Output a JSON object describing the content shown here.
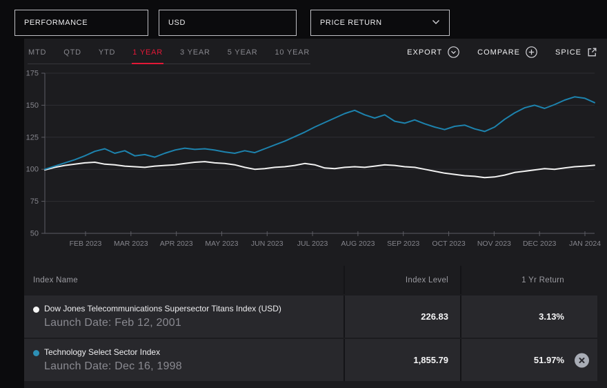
{
  "filters": [
    {
      "label": "PERFORMANCE"
    },
    {
      "label": "USD"
    },
    {
      "label": "PRICE RETURN"
    }
  ],
  "tabs": {
    "items": [
      "MTD",
      "QTD",
      "YTD",
      "1 YEAR",
      "3 YEAR",
      "5 YEAR",
      "10 YEAR"
    ],
    "active": "1 YEAR"
  },
  "actions": {
    "export_label": "EXPORT",
    "compare_label": "COMPARE",
    "spice_label": "SPICE"
  },
  "chart_data": {
    "type": "line",
    "title": "",
    "xlabel": "",
    "ylabel": "",
    "ylim": [
      50,
      175
    ],
    "grid": true,
    "legend_position": "none",
    "y_ticks": [
      175,
      150,
      125,
      100,
      75,
      50
    ],
    "x_ticks": [
      "FEB 2023",
      "MAR 2023",
      "APR 2023",
      "MAY 2023",
      "JUN 2023",
      "JUL 2023",
      "AUG 2023",
      "SEP 2023",
      "OCT 2023",
      "NOV 2023",
      "DEC 2023",
      "JAN 2024"
    ],
    "series": [
      {
        "name": "Dow Jones Telecommunications Supersector Titans Index (USD)",
        "color": "#f2f2f2",
        "values": [
          99.5,
          101.5,
          103,
          104,
          105,
          105.5,
          104,
          103.5,
          102.5,
          102,
          101.5,
          102.5,
          103,
          103.5,
          104.5,
          105.5,
          106,
          105,
          104.5,
          103.5,
          101.5,
          100,
          100.5,
          101.5,
          102,
          103,
          104.5,
          103.5,
          101,
          100.5,
          101.5,
          102,
          101.5,
          102.5,
          103.5,
          103,
          102,
          101.5,
          100,
          98.5,
          97,
          96,
          95,
          94.5,
          93.5,
          94,
          95.5,
          97.5,
          98.5,
          99.5,
          100.5,
          100,
          101,
          102,
          102.5,
          103.1
        ]
      },
      {
        "name": "Technology Select Sector Index",
        "color": "#1d83ae",
        "values": [
          100,
          102.5,
          105,
          107.5,
          110.5,
          114,
          116,
          112.5,
          114.5,
          110.5,
          111.5,
          109.5,
          112.5,
          115,
          116.5,
          115.5,
          116,
          115,
          113.5,
          112.5,
          114.5,
          113,
          116,
          119,
          122,
          125.5,
          129,
          133,
          136.5,
          140,
          143.5,
          146,
          142.5,
          140,
          142.5,
          137.5,
          136,
          138.5,
          135.5,
          133,
          131,
          133.5,
          134.5,
          131.5,
          129.5,
          133,
          139,
          144,
          148,
          150,
          147.5,
          150.5,
          154,
          156.5,
          155.5,
          152
        ]
      }
    ]
  },
  "table": {
    "columns": [
      "Index Name",
      "Index Level",
      "1 Yr Return"
    ],
    "rows": [
      {
        "dot_color": "#f5f5f5",
        "name": "Dow Jones Telecommunications Supersector Titans Index (USD)",
        "launch": "Launch Date: Feb 12, 2001",
        "level": "226.83",
        "return": "3.13%"
      },
      {
        "dot_color": "#2d8fb5",
        "name": "Technology Select Sector Index",
        "launch": "Launch Date: Dec 16, 1998",
        "level": "1,855.79",
        "return": "51.97%"
      }
    ]
  },
  "colors": {
    "accent_red": "#e31837",
    "line_blue": "#1d83ae",
    "line_white": "#f2f2f2",
    "panel_bg": "#1c1c1f",
    "row_bg": "#28282c",
    "page_bg": "#0b0b0d"
  }
}
